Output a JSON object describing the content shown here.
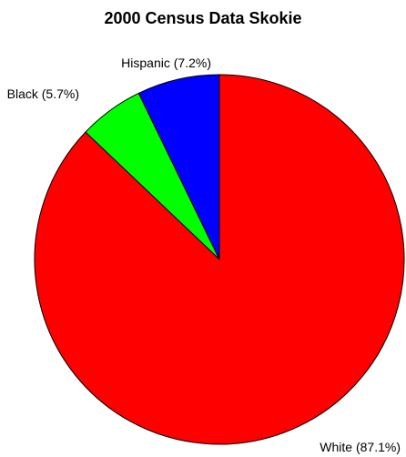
{
  "chart_data": {
    "type": "pie",
    "title": "2000 Census Data Skokie",
    "slices": [
      {
        "label": "Hispanic (7.2%)",
        "value": 7.2,
        "color": "#0000ff"
      },
      {
        "label": "Black (5.7%)",
        "value": 5.7,
        "color": "#00ff00"
      },
      {
        "label": "White (87.1%)",
        "value": 87.1,
        "color": "#ff0000"
      }
    ],
    "start_angle_deg": 0,
    "direction": "counterclockwise",
    "legend": "none"
  }
}
